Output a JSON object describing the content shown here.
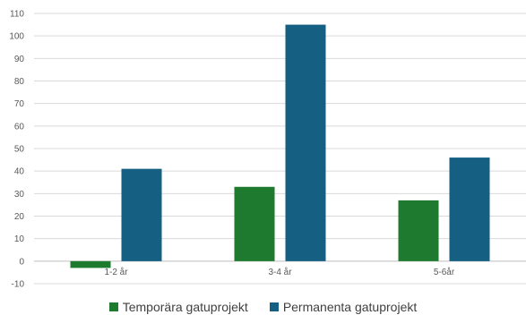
{
  "chart_data": {
    "type": "bar",
    "categories": [
      "1-2 år",
      "3-4 år",
      "5-6år"
    ],
    "series": [
      {
        "name": "Temporära gatuprojekt",
        "values": [
          -3,
          33,
          27
        ],
        "color": "#1e7a2e"
      },
      {
        "name": "Permanenta gatuprojekt",
        "values": [
          41,
          105,
          46
        ],
        "color": "#155f83"
      }
    ],
    "ylim": [
      -10,
      110
    ],
    "yticks": [
      -10,
      0,
      10,
      20,
      30,
      40,
      50,
      60,
      70,
      80,
      90,
      100,
      110
    ],
    "grid": true,
    "legend_position": "bottom",
    "title": "",
    "xlabel": "",
    "ylabel": ""
  }
}
